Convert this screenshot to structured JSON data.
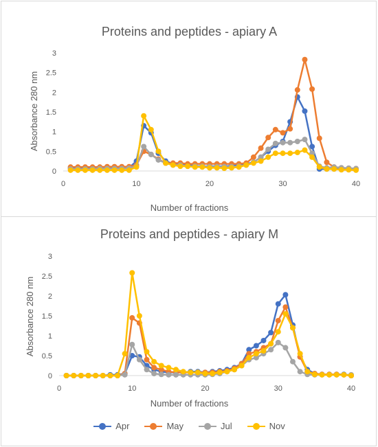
{
  "legend_items": [
    {
      "name": "Apr",
      "color": "#4472C4"
    },
    {
      "name": "May",
      "color": "#ED7D31"
    },
    {
      "name": "Jul",
      "color": "#A5A5A5"
    },
    {
      "name": "Nov",
      "color": "#FFC000"
    }
  ],
  "chart_data": [
    {
      "type": "line",
      "title": "Proteins and peptides - apiary A",
      "xlabel": "Number of fractions",
      "ylabel": "Absorbance 280 nm",
      "xlim": [
        0,
        40
      ],
      "ylim": [
        0,
        3
      ],
      "xticks": [
        0,
        10,
        20,
        30,
        40
      ],
      "yticks": [
        0,
        0.5,
        1,
        1.5,
        2,
        2.5,
        3
      ],
      "grid": false,
      "legend": "bottom",
      "x": [
        1,
        2,
        3,
        4,
        5,
        6,
        7,
        8,
        9,
        10,
        11,
        12,
        13,
        14,
        15,
        16,
        17,
        18,
        19,
        20,
        21,
        22,
        23,
        24,
        25,
        26,
        27,
        28,
        29,
        30,
        31,
        32,
        33,
        34,
        35,
        36,
        37,
        38,
        39,
        40
      ],
      "series": [
        {
          "name": "Apr",
          "color": "#4472C4",
          "values": [
            0.07,
            0.07,
            0.07,
            0.07,
            0.07,
            0.08,
            0.08,
            0.08,
            0.08,
            0.25,
            1.15,
            0.97,
            0.45,
            0.25,
            0.18,
            0.15,
            0.15,
            0.13,
            0.12,
            0.12,
            0.12,
            0.12,
            0.13,
            0.15,
            0.18,
            0.22,
            0.35,
            0.5,
            0.65,
            0.75,
            1.25,
            1.88,
            1.52,
            0.62,
            0.05,
            0.05,
            0.05,
            0.05,
            0.05,
            0.04
          ]
        },
        {
          "name": "May",
          "color": "#ED7D31",
          "values": [
            0.1,
            0.1,
            0.1,
            0.1,
            0.1,
            0.11,
            0.11,
            0.11,
            0.11,
            0.15,
            0.5,
            0.42,
            0.3,
            0.2,
            0.2,
            0.2,
            0.18,
            0.18,
            0.18,
            0.18,
            0.18,
            0.18,
            0.18,
            0.18,
            0.2,
            0.35,
            0.58,
            0.85,
            1.05,
            0.97,
            1.07,
            2.06,
            2.83,
            2.08,
            0.83,
            0.22,
            0.1,
            0.08,
            0.07,
            0.06
          ]
        },
        {
          "name": "Jul",
          "color": "#A5A5A5",
          "values": [
            0.05,
            0.05,
            0.05,
            0.05,
            0.06,
            0.06,
            0.06,
            0.06,
            0.07,
            0.12,
            0.62,
            0.42,
            0.28,
            0.2,
            0.15,
            0.15,
            0.12,
            0.12,
            0.12,
            0.11,
            0.11,
            0.11,
            0.11,
            0.12,
            0.15,
            0.22,
            0.35,
            0.55,
            0.7,
            0.72,
            0.72,
            0.75,
            0.8,
            0.45,
            0.12,
            0.08,
            0.1,
            0.08,
            0.07,
            0.06
          ]
        },
        {
          "name": "Nov",
          "color": "#FFC000",
          "values": [
            0.02,
            0.02,
            0.02,
            0.02,
            0.02,
            0.02,
            0.02,
            0.02,
            0.02,
            0.1,
            1.4,
            1.05,
            0.5,
            0.2,
            0.15,
            0.12,
            0.12,
            0.1,
            0.1,
            0.08,
            0.08,
            0.07,
            0.08,
            0.1,
            0.15,
            0.2,
            0.25,
            0.35,
            0.45,
            0.45,
            0.45,
            0.47,
            0.53,
            0.35,
            0.1,
            0.05,
            0.05,
            0.03,
            0.03,
            0.02
          ]
        }
      ]
    },
    {
      "type": "line",
      "title": "Proteins and peptides - apiary M",
      "xlabel": "Number of fractions",
      "ylabel": "Absorbance 280 nm",
      "xlim": [
        0,
        40
      ],
      "ylim": [
        0,
        3
      ],
      "xticks": [
        0,
        10,
        20,
        30,
        40
      ],
      "yticks": [
        0,
        0.5,
        1,
        1.5,
        2,
        2.5,
        3
      ],
      "grid": false,
      "legend": "bottom",
      "x": [
        1,
        2,
        3,
        4,
        5,
        6,
        7,
        8,
        9,
        10,
        11,
        12,
        13,
        14,
        15,
        16,
        17,
        18,
        19,
        20,
        21,
        22,
        23,
        24,
        25,
        26,
        27,
        28,
        29,
        30,
        31,
        32,
        33,
        34,
        35,
        36,
        37,
        38,
        39,
        40
      ],
      "series": [
        {
          "name": "Apr",
          "color": "#4472C4",
          "values": [
            0,
            0,
            0,
            0,
            0,
            0,
            0.02,
            0.02,
            0.05,
            0.5,
            0.47,
            0.25,
            0.15,
            0.1,
            0.08,
            0.08,
            0.08,
            0.1,
            0.1,
            0.08,
            0.1,
            0.12,
            0.15,
            0.2,
            0.3,
            0.65,
            0.75,
            0.88,
            1.08,
            1.8,
            2.03,
            1.27,
            0.47,
            0.15,
            0.05,
            0.03,
            0.03,
            0.03,
            0.03,
            0
          ]
        },
        {
          "name": "May",
          "color": "#ED7D31",
          "values": [
            0,
            0,
            0,
            0,
            0,
            0,
            0,
            0,
            0.05,
            1.45,
            1.32,
            0.4,
            0.2,
            0.15,
            0.1,
            0.08,
            0.08,
            0.08,
            0.08,
            0.08,
            0.08,
            0.1,
            0.12,
            0.18,
            0.3,
            0.55,
            0.6,
            0.7,
            0.8,
            1.38,
            1.72,
            1.2,
            0.47,
            0.1,
            0.05,
            0.03,
            0.03,
            0.03,
            0.02,
            0
          ]
        },
        {
          "name": "Jul",
          "color": "#A5A5A5",
          "values": [
            0,
            0,
            0,
            0,
            0,
            0,
            0,
            0,
            0.02,
            0.78,
            0.4,
            0.15,
            0.05,
            0.03,
            0.02,
            0.02,
            0.02,
            0.02,
            0.02,
            0.02,
            0.03,
            0.05,
            0.1,
            0.15,
            0.25,
            0.4,
            0.45,
            0.55,
            0.65,
            0.83,
            0.7,
            0.35,
            0.1,
            0.03,
            0.02,
            0.02,
            0.02,
            0.02,
            0.02,
            0.02
          ]
        },
        {
          "name": "Nov",
          "color": "#FFC000",
          "values": [
            0,
            0,
            0,
            0,
            0,
            0,
            0,
            0,
            0.55,
            2.58,
            1.5,
            0.6,
            0.35,
            0.25,
            0.2,
            0.15,
            0.1,
            0.08,
            0.08,
            0.05,
            0.05,
            0.08,
            0.1,
            0.15,
            0.25,
            0.45,
            0.55,
            0.62,
            0.8,
            1.1,
            1.55,
            1.2,
            0.55,
            0.1,
            0.03,
            0.02,
            0.02,
            0.02,
            0.02,
            0
          ]
        }
      ]
    }
  ]
}
